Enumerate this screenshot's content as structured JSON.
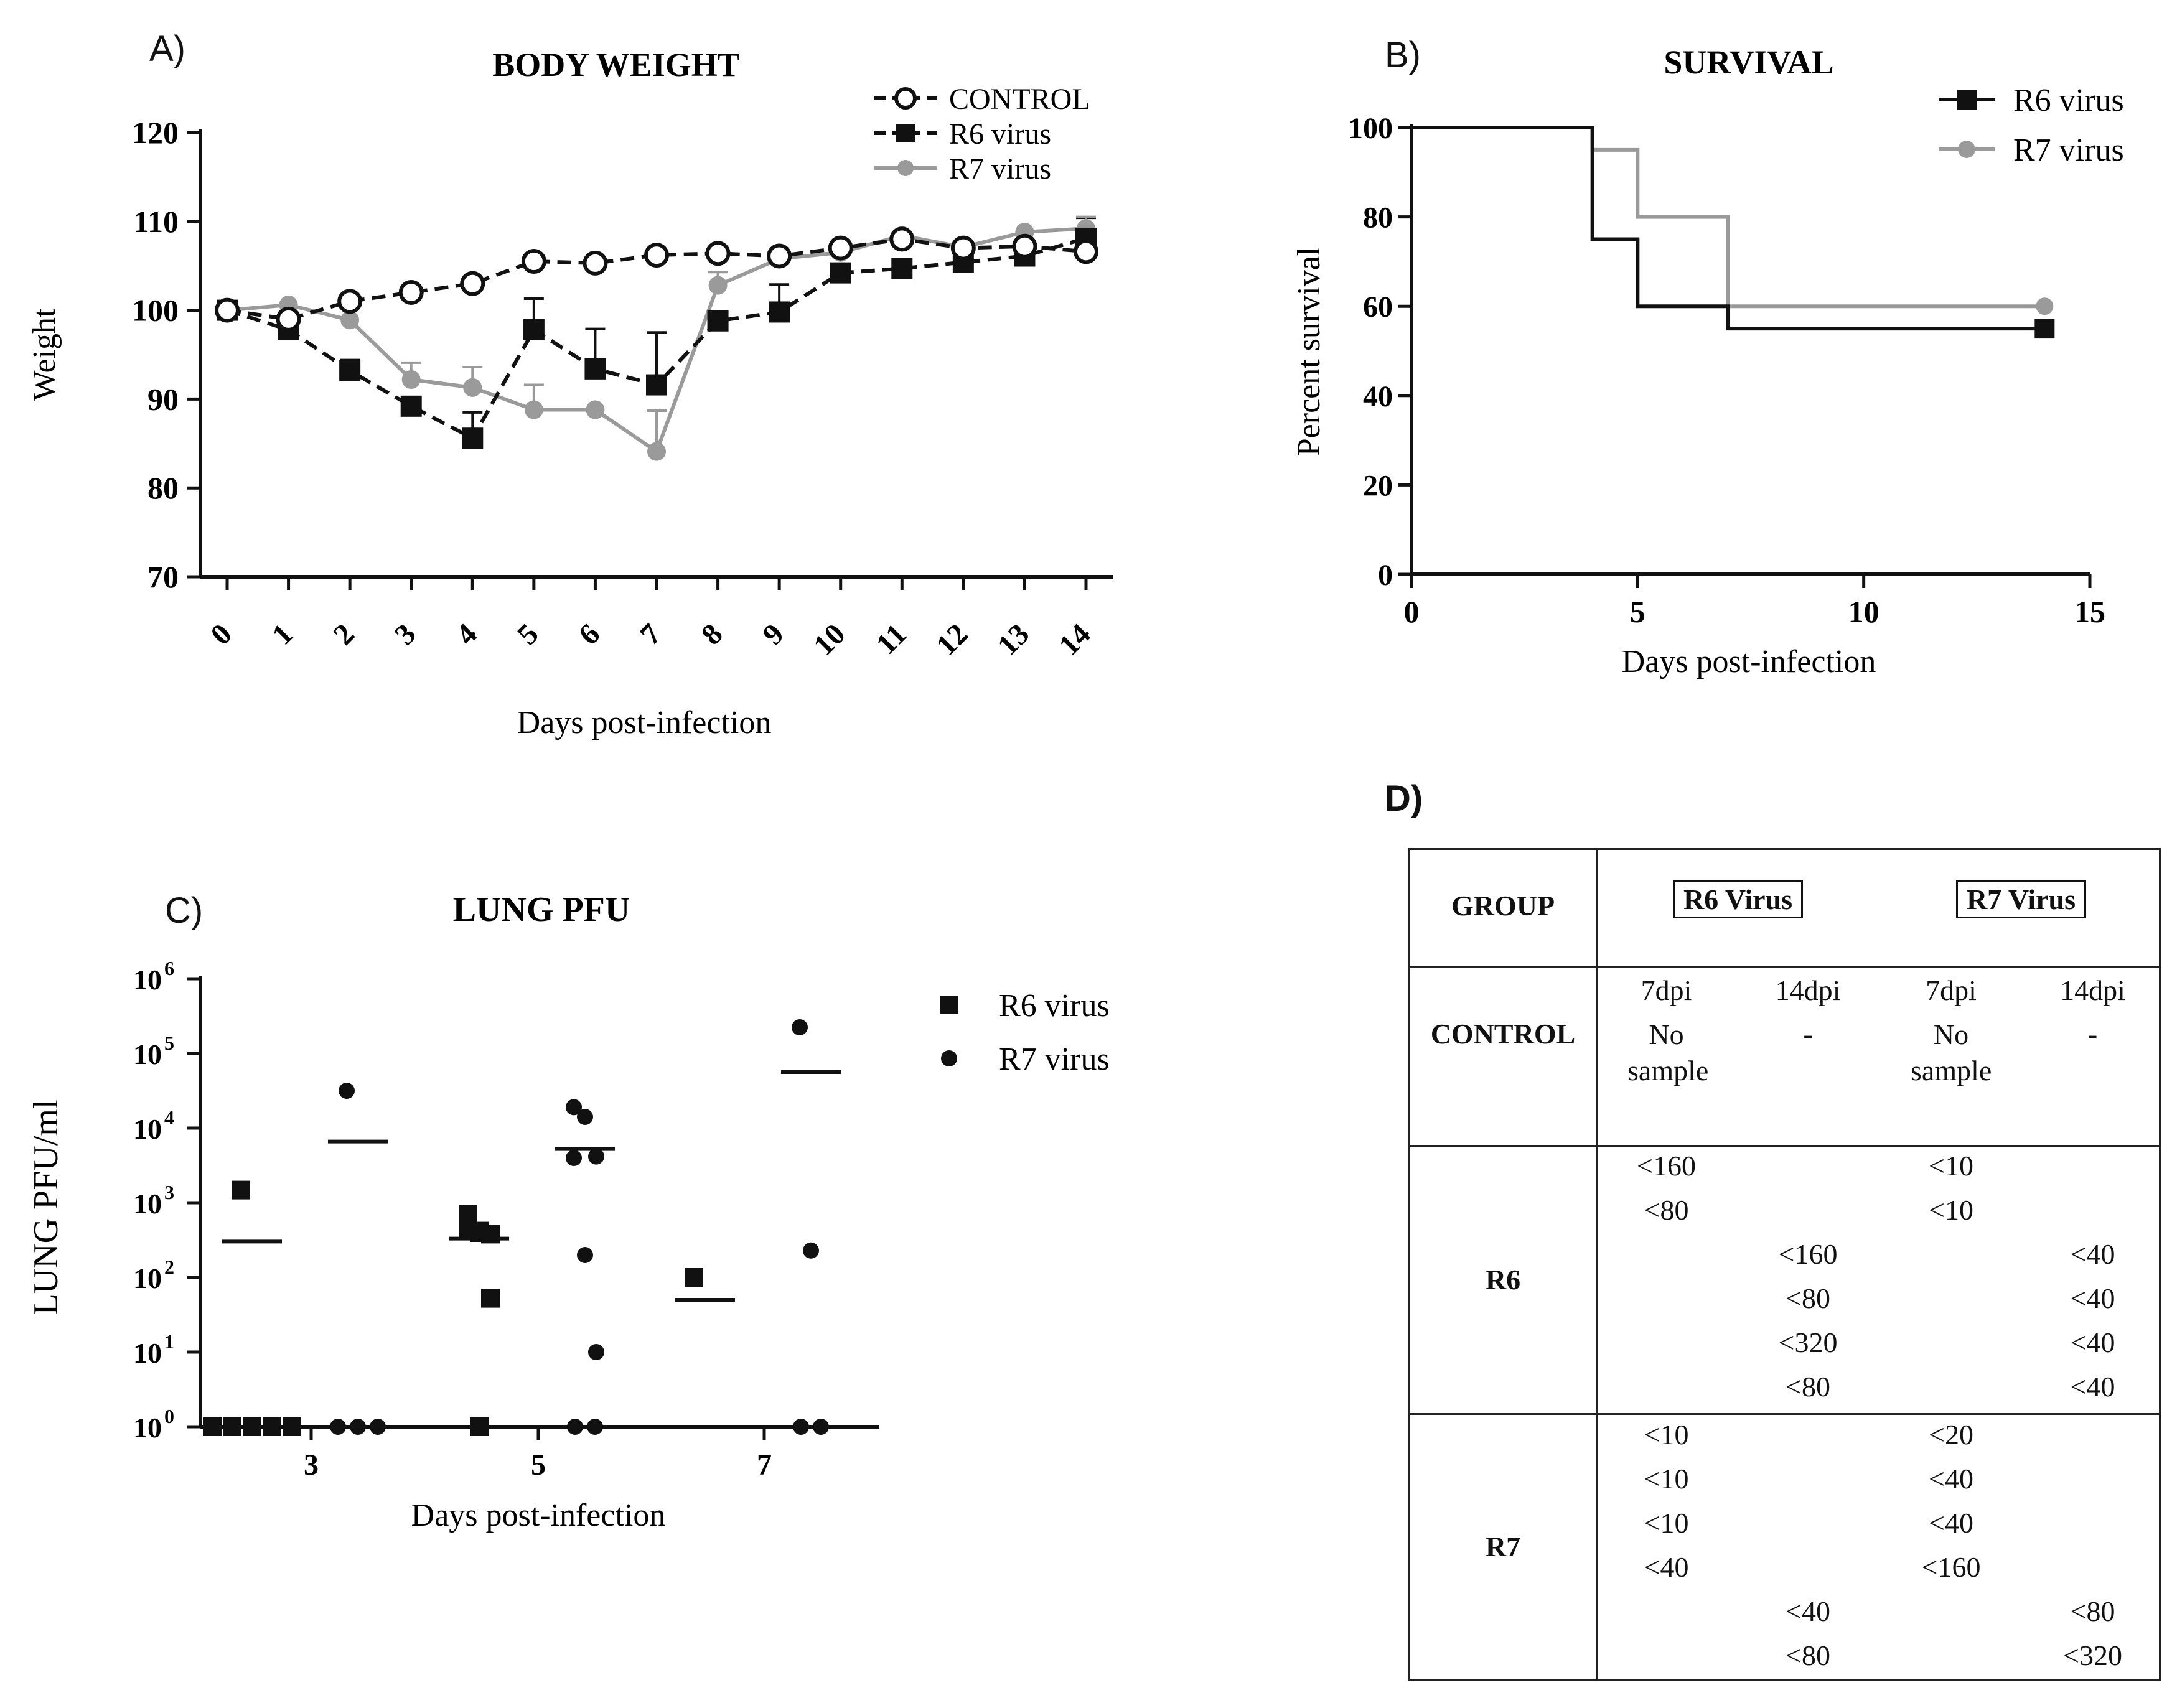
{
  "chart_data": [
    {
      "panel": "A)",
      "type": "line",
      "title": "BODY WEIGHT",
      "xlabel": "Days post-infection",
      "ylabel": "Weight",
      "ylim": [
        70,
        120
      ],
      "yticks": [
        "70",
        "80",
        "90",
        "100",
        "110",
        "120"
      ],
      "categories": [
        "0",
        "1",
        "2",
        "3",
        "4",
        "5",
        "6",
        "7",
        "8",
        "9",
        "10",
        "11",
        "12",
        "13",
        "14"
      ],
      "legend_position": "top-right",
      "series": [
        {
          "name": "CONTROL",
          "color": "#111111",
          "marker": "open-circle",
          "dash": "dashed",
          "values": [
            100,
            99,
            101,
            102,
            103,
            105.5,
            105.3,
            106.2,
            106.4,
            106.1,
            107,
            108,
            107,
            107.2,
            106.6
          ]
        },
        {
          "name": "R6 virus",
          "color": "#111111",
          "marker": "square",
          "dash": "dashed",
          "values": [
            100,
            97.8,
            93.2,
            89.2,
            85.6,
            97.8,
            93.4,
            91.6,
            98.8,
            99.8,
            104.2,
            104.7,
            105.4,
            106.1,
            108.1
          ],
          "error": [
            0,
            0,
            1.2,
            0,
            2.9,
            3.5,
            4.5,
            5.9,
            0,
            3.1,
            0,
            0,
            0,
            0,
            2.3
          ]
        },
        {
          "name": "R7 virus",
          "color": "#9a9a9a",
          "marker": "filled-circle",
          "dash": "solid",
          "values": [
            100,
            100.6,
            98.9,
            92.2,
            91.3,
            88.8,
            88.8,
            84.1,
            102.8,
            105.8,
            106.5,
            108.4,
            107.1,
            108.8,
            109.2
          ],
          "error": [
            0,
            0,
            0,
            1.9,
            2.3,
            2.8,
            0,
            4.6,
            1.5,
            0,
            0,
            0,
            0,
            0,
            1.3
          ]
        }
      ]
    },
    {
      "panel": "B)",
      "type": "line",
      "subtype": "step",
      "title": "SURVIVAL",
      "xlabel": "Days post-infection",
      "ylabel": "Percent survival",
      "xlim": [
        0,
        15
      ],
      "ylim": [
        0,
        100
      ],
      "xticks": [
        "0",
        "5",
        "10",
        "15"
      ],
      "yticks": [
        "0",
        "20",
        "40",
        "60",
        "80",
        "100"
      ],
      "legend_position": "top-right",
      "series": [
        {
          "name": "R6 virus",
          "color": "#111111",
          "marker": "square",
          "steps": [
            [
              0,
              100
            ],
            [
              4,
              75
            ],
            [
              5,
              60
            ],
            [
              7,
              55
            ],
            [
              14,
              55
            ]
          ]
        },
        {
          "name": "R7 virus",
          "color": "#9a9a9a",
          "marker": "filled-circle",
          "steps": [
            [
              0,
              100
            ],
            [
              4,
              95
            ],
            [
              5,
              80
            ],
            [
              7,
              60
            ],
            [
              14,
              60
            ]
          ]
        }
      ]
    },
    {
      "panel": "C)",
      "type": "scatter",
      "title": "LUNG PFU",
      "xlabel": "Days post-infection",
      "ylabel": "LUNG PFU/ml",
      "yscale": "log",
      "ylim_log10": [
        0,
        6
      ],
      "ytick_base": "10",
      "yticks_exp": [
        "0",
        "1",
        "2",
        "3",
        "4",
        "5",
        "6"
      ],
      "categories": [
        "3",
        "5",
        "7"
      ],
      "legend_position": "top-right",
      "series": [
        {
          "name": "R6 virus",
          "marker": "square",
          "groups": [
            {
              "day": "3",
              "points_log10": [
                3.17,
                0,
                0,
                0,
                0,
                0
              ],
              "mean_log10": 2.48
            },
            {
              "day": "5",
              "points_log10": [
                2.85,
                2.62,
                2.58,
                2.66,
                2.6,
                1.72,
                0
              ],
              "mean_log10": 2.52
            },
            {
              "day": "7",
              "points_log10": [
                2.0
              ],
              "mean_log10": 1.7
            }
          ]
        },
        {
          "name": "R7 virus",
          "marker": "filled-circle",
          "groups": [
            {
              "day": "3",
              "points_log10": [
                4.5,
                0,
                0,
                0
              ],
              "mean_log10": 3.82
            },
            {
              "day": "5",
              "points_log10": [
                4.28,
                4.15,
                3.62,
                3.6,
                2.3,
                1.0,
                0,
                0
              ],
              "mean_log10": 3.72
            },
            {
              "day": "7",
              "points_log10": [
                5.35,
                2.36,
                0,
                0
              ],
              "mean_log10": 4.75
            }
          ]
        }
      ]
    }
  ],
  "panel_labels": {
    "a": "A)",
    "b": "B)",
    "c": "C)",
    "d": "D)"
  },
  "table": {
    "header": {
      "group": "GROUP",
      "r6": "R6 Virus",
      "r7": "R7 Virus"
    },
    "subheaders": [
      "7dpi",
      "14dpi",
      "7dpi",
      "14dpi"
    ],
    "control": {
      "label": "CONTROL",
      "r6_7": "No sample",
      "r6_14": "-",
      "r7_7": "No sample",
      "r7_14": "-"
    },
    "r6": {
      "label": "R6",
      "rows": [
        [
          "<160",
          "",
          "<10",
          ""
        ],
        [
          "<80",
          "",
          "<10",
          ""
        ],
        [
          "",
          "<160",
          "",
          "<40"
        ],
        [
          "",
          "<80",
          "",
          "<40"
        ],
        [
          "",
          "<320",
          "",
          "<40"
        ],
        [
          "",
          "<80",
          "",
          "<40"
        ]
      ]
    },
    "r7": {
      "label": "R7",
      "rows": [
        [
          "<10",
          "",
          "<20",
          ""
        ],
        [
          "<10",
          "",
          "<40",
          ""
        ],
        [
          "<10",
          "",
          "<40",
          ""
        ],
        [
          "<40",
          "",
          "<160",
          ""
        ],
        [
          "",
          "<40",
          "",
          "<80"
        ],
        [
          "",
          "<80",
          "",
          "<320"
        ]
      ]
    }
  }
}
